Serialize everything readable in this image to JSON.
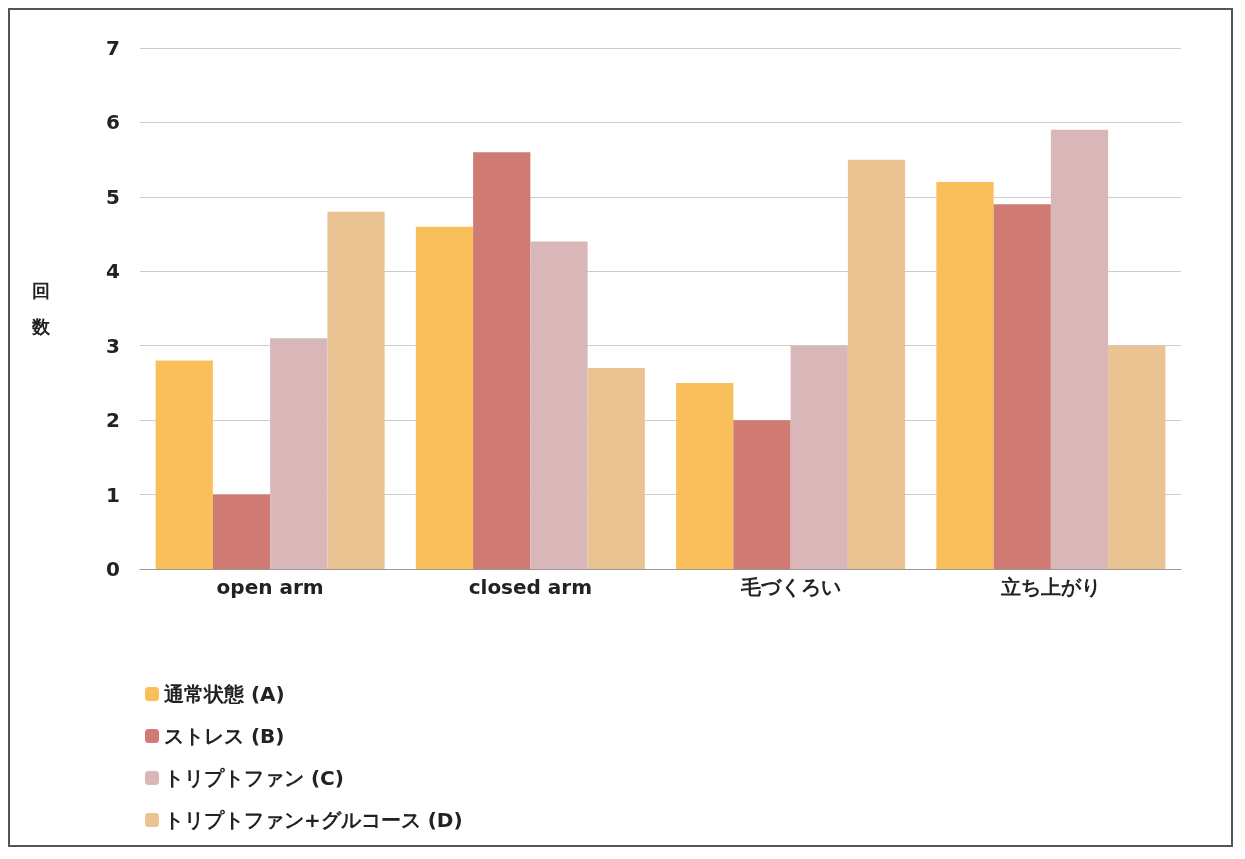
{
  "chart_data": {
    "type": "bar",
    "ylabel": "回数",
    "categories": [
      "open arm",
      "closed arm",
      "毛づくろい",
      "立ち上がり"
    ],
    "series": [
      {
        "name": "通常状態 (A)",
        "color": "#f9bf5a",
        "values": [
          2.8,
          4.6,
          2.5,
          5.2
        ]
      },
      {
        "name": "ストレス (B)",
        "color": "#d07a74",
        "values": [
          1.0,
          5.6,
          2.0,
          4.9
        ]
      },
      {
        "name": "トリプトファン (C)",
        "color": "#d9b7b8",
        "values": [
          3.1,
          4.4,
          3.0,
          5.9
        ]
      },
      {
        "name": "トリプトファン+グルコース (D)",
        "color": "#eac393",
        "values": [
          4.8,
          2.7,
          5.5,
          3.0
        ]
      }
    ],
    "ylim": [
      0,
      7
    ],
    "yticks": [
      0,
      1,
      2,
      3,
      4,
      5,
      6,
      7
    ],
    "grid": "y",
    "legend": "bottom left"
  }
}
